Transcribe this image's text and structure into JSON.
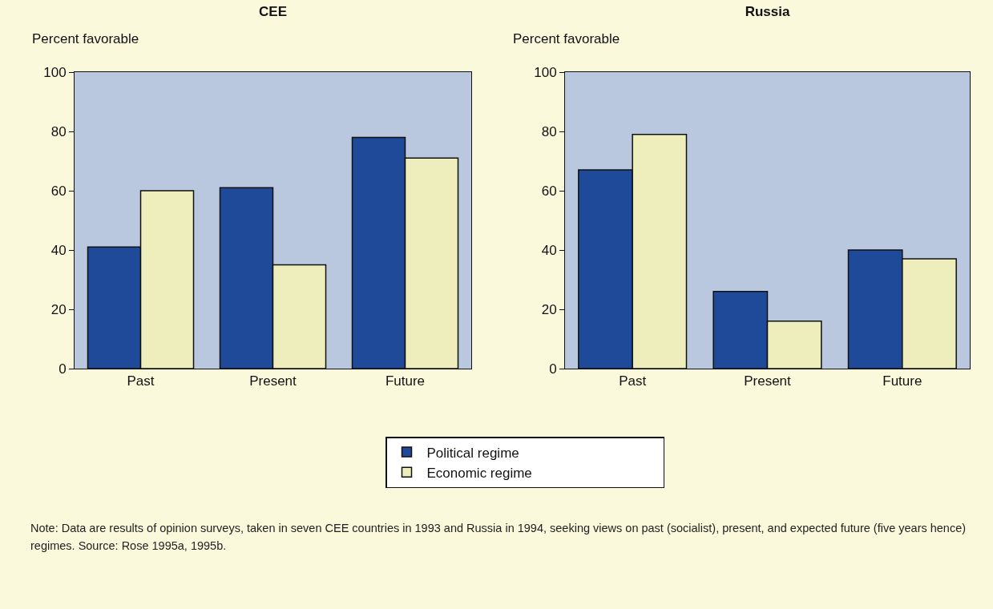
{
  "chart_data": [
    {
      "type": "bar",
      "title": "CEE",
      "ylabel": "Percent favorable",
      "categories": [
        "Past",
        "Present",
        "Future"
      ],
      "series": [
        {
          "name": "Political regime",
          "color": "#1f4a9a",
          "values": [
            41,
            61,
            78
          ]
        },
        {
          "name": "Economic regime",
          "color": "#eeeebd",
          "values": [
            60,
            35,
            71
          ]
        }
      ],
      "ylim": [
        0,
        100
      ],
      "yticks": [
        0,
        20,
        40,
        60,
        80,
        100
      ],
      "grid": false,
      "legend": "bottom",
      "annotations": [
        "Note:  Data are results of opinion surveys, taken in seven CEE countries in 1993 and Russia in 1994, seeking views on past (socialist), present, and expected future (five years hence) regimes. Source: Rose 1995a, 1995b."
      ]
    },
    {
      "type": "bar",
      "title": "Russia",
      "ylabel": "Percent favorable",
      "categories": [
        "Past",
        "Present",
        "Future"
      ],
      "series": [
        {
          "color": "#1f4a9a",
          "values": [
            67,
            26,
            40
          ]
        },
        {
          "color": "#eeeebd",
          "values": [
            79,
            16,
            37
          ]
        }
      ],
      "ylim": [
        0,
        100
      ],
      "yticks": [
        0,
        20,
        40,
        60,
        80,
        100
      ],
      "grid": false,
      "legend": false
    }
  ]
}
